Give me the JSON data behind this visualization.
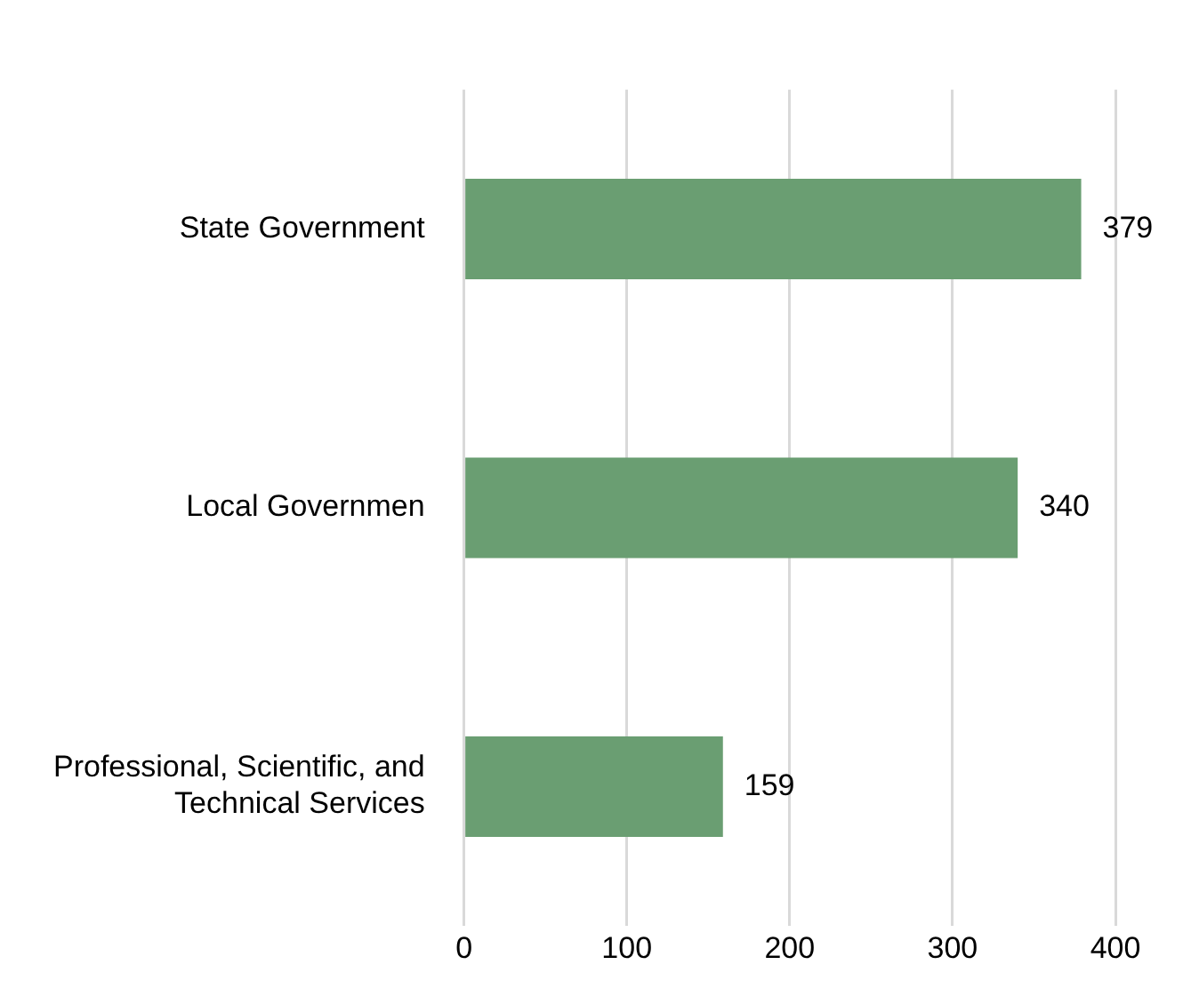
{
  "chart_data": {
    "type": "bar",
    "orientation": "horizontal",
    "categories": [
      "State Government",
      "Local Governmen",
      "Professional, Scientific, and Technical Services"
    ],
    "values": [
      379,
      340,
      159
    ],
    "color": "#6a9e72",
    "xlim": [
      0,
      400
    ],
    "xticks": [
      0,
      100,
      200,
      300,
      400
    ],
    "grid": "x",
    "data_labels": true,
    "legend": false
  }
}
